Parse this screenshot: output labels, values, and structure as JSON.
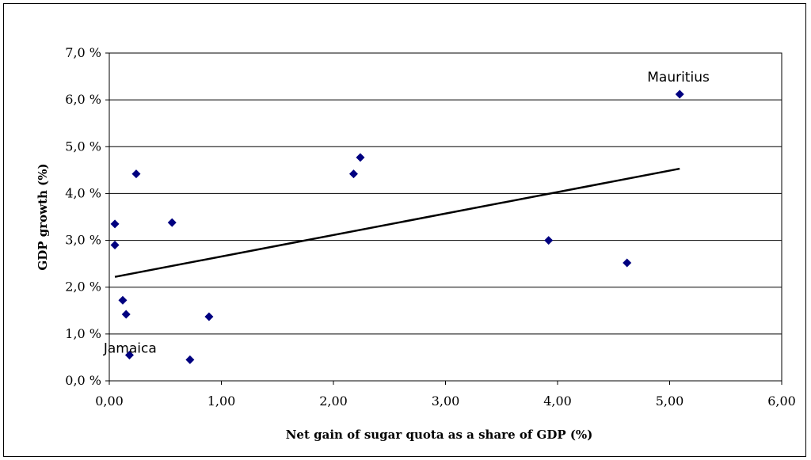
{
  "chart_data": {
    "type": "scatter",
    "title": "",
    "xlabel": "Net gain of sugar quota as a share of GDP (%)",
    "ylabel": "GDP growth (%)",
    "xlim": [
      0,
      6
    ],
    "ylim": [
      0,
      7
    ],
    "x_ticks": [
      0,
      1,
      2,
      3,
      4,
      5,
      6
    ],
    "y_ticks": [
      0,
      1,
      2,
      3,
      4,
      5,
      6,
      7
    ],
    "x_tick_labels": [
      "0,00",
      "1,00",
      "2,00",
      "3,00",
      "4,00",
      "5,00",
      "6,00"
    ],
    "y_tick_labels": [
      "0,0 %",
      "1,0 %",
      "2,0 %",
      "3,0 %",
      "4,0 %",
      "5,0 %",
      "6,0 %",
      "7,0 %"
    ],
    "grid": "horizontal",
    "marker_color": "#000080",
    "series": [
      {
        "points": [
          {
            "x": 0.05,
            "y": 3.35
          },
          {
            "x": 0.05,
            "y": 2.9
          },
          {
            "x": 0.12,
            "y": 1.72
          },
          {
            "x": 0.15,
            "y": 1.42
          },
          {
            "x": 0.18,
            "y": 0.55
          },
          {
            "x": 0.24,
            "y": 4.42
          },
          {
            "x": 0.56,
            "y": 3.38
          },
          {
            "x": 0.72,
            "y": 0.45
          },
          {
            "x": 0.89,
            "y": 1.37
          },
          {
            "x": 2.18,
            "y": 4.42
          },
          {
            "x": 2.24,
            "y": 4.77
          },
          {
            "x": 3.92,
            "y": 3.0
          },
          {
            "x": 4.62,
            "y": 2.52
          },
          {
            "x": 5.09,
            "y": 6.12
          }
        ]
      }
    ],
    "trendline": {
      "x": [
        0.05,
        5.09
      ],
      "y": [
        2.22,
        4.53
      ],
      "color": "#000000"
    },
    "annotations": [
      {
        "text": "Mauritius",
        "x": 5.09,
        "y": 6.12
      },
      {
        "text": "Jamaica",
        "x": 0.72,
        "y": 0.45
      }
    ]
  }
}
